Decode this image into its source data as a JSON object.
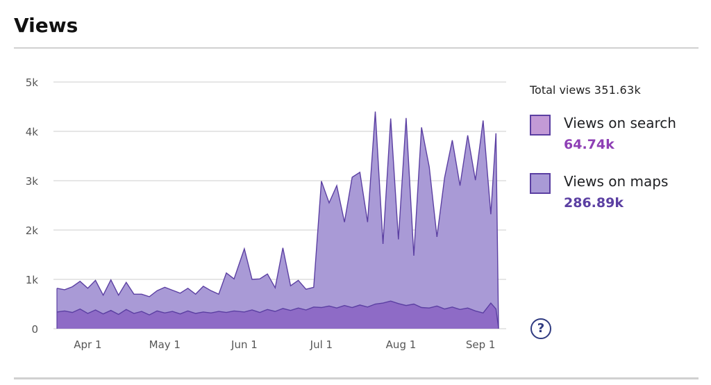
{
  "header": {
    "title": "Views"
  },
  "summary": {
    "total_label": "Total views",
    "total_value": "351.63k"
  },
  "legend": {
    "items": [
      {
        "label": "Views on search",
        "value": "64.74k",
        "swatch_color": "#c39ad6",
        "value_color": "#8e3fb5"
      },
      {
        "label": "Views on maps",
        "value": "286.89k",
        "swatch_color": "#a99ad6",
        "value_color": "#5b3fa2"
      }
    ]
  },
  "help": {
    "icon": "question-circle-icon",
    "glyph": "?"
  },
  "chart_data": {
    "type": "area",
    "stacked": true,
    "grid": true,
    "legend_placement": "right",
    "ylim": [
      0,
      5000
    ],
    "y_ticks": [
      0,
      1000,
      2000,
      3000,
      4000,
      5000
    ],
    "y_tick_labels": [
      "0",
      "1k",
      "2k",
      "3k",
      "4k",
      "5k"
    ],
    "x_range": [
      "2024-03-20",
      "2024-09-10"
    ],
    "x_ticks": [
      "2024-04-01",
      "2024-05-01",
      "2024-06-01",
      "2024-07-01",
      "2024-08-01",
      "2024-09-01"
    ],
    "x_tick_labels": [
      "Apr 1",
      "May 1",
      "Jun 1",
      "Jul 1",
      "Aug 1",
      "Sep 1"
    ],
    "colors": {
      "search_fill": "#8e6bc6",
      "maps_fill": "#a99ad6",
      "line": "#5b3fa2",
      "grid": "#cccccc"
    },
    "series": [
      {
        "name": "Views on search",
        "points": [
          [
            "2024-03-20",
            340
          ],
          [
            "2024-03-23",
            360
          ],
          [
            "2024-03-26",
            330
          ],
          [
            "2024-03-29",
            400
          ],
          [
            "2024-04-01",
            310
          ],
          [
            "2024-04-04",
            380
          ],
          [
            "2024-04-07",
            300
          ],
          [
            "2024-04-10",
            370
          ],
          [
            "2024-04-13",
            290
          ],
          [
            "2024-04-16",
            390
          ],
          [
            "2024-04-19",
            310
          ],
          [
            "2024-04-22",
            350
          ],
          [
            "2024-04-25",
            280
          ],
          [
            "2024-04-28",
            360
          ],
          [
            "2024-05-01",
            320
          ],
          [
            "2024-05-04",
            350
          ],
          [
            "2024-05-07",
            300
          ],
          [
            "2024-05-10",
            360
          ],
          [
            "2024-05-13",
            310
          ],
          [
            "2024-05-16",
            340
          ],
          [
            "2024-05-19",
            320
          ],
          [
            "2024-05-22",
            350
          ],
          [
            "2024-05-25",
            330
          ],
          [
            "2024-05-28",
            360
          ],
          [
            "2024-06-01",
            340
          ],
          [
            "2024-06-04",
            380
          ],
          [
            "2024-06-07",
            330
          ],
          [
            "2024-06-10",
            390
          ],
          [
            "2024-06-13",
            350
          ],
          [
            "2024-06-16",
            410
          ],
          [
            "2024-06-19",
            370
          ],
          [
            "2024-06-22",
            420
          ],
          [
            "2024-06-25",
            380
          ],
          [
            "2024-06-28",
            440
          ],
          [
            "2024-07-01",
            430
          ],
          [
            "2024-07-04",
            460
          ],
          [
            "2024-07-07",
            420
          ],
          [
            "2024-07-10",
            470
          ],
          [
            "2024-07-13",
            430
          ],
          [
            "2024-07-16",
            480
          ],
          [
            "2024-07-19",
            440
          ],
          [
            "2024-07-22",
            500
          ],
          [
            "2024-07-25",
            520
          ],
          [
            "2024-07-28",
            560
          ],
          [
            "2024-07-31",
            510
          ],
          [
            "2024-08-03",
            470
          ],
          [
            "2024-08-06",
            500
          ],
          [
            "2024-08-09",
            430
          ],
          [
            "2024-08-12",
            420
          ],
          [
            "2024-08-15",
            460
          ],
          [
            "2024-08-18",
            400
          ],
          [
            "2024-08-21",
            440
          ],
          [
            "2024-08-24",
            390
          ],
          [
            "2024-08-27",
            420
          ],
          [
            "2024-08-30",
            360
          ],
          [
            "2024-09-02",
            320
          ],
          [
            "2024-09-05",
            520
          ],
          [
            "2024-09-07",
            400
          ],
          [
            "2024-09-08",
            20
          ]
        ]
      },
      {
        "name": "Views on maps",
        "points": [
          [
            "2024-03-20",
            480
          ],
          [
            "2024-03-23",
            430
          ],
          [
            "2024-03-26",
            520
          ],
          [
            "2024-03-29",
            560
          ],
          [
            "2024-04-01",
            510
          ],
          [
            "2024-04-04",
            600
          ],
          [
            "2024-04-07",
            380
          ],
          [
            "2024-04-10",
            620
          ],
          [
            "2024-04-13",
            390
          ],
          [
            "2024-04-16",
            550
          ],
          [
            "2024-04-19",
            390
          ],
          [
            "2024-04-22",
            350
          ],
          [
            "2024-04-25",
            370
          ],
          [
            "2024-04-28",
            410
          ],
          [
            "2024-05-01",
            520
          ],
          [
            "2024-05-04",
            430
          ],
          [
            "2024-05-07",
            420
          ],
          [
            "2024-05-10",
            460
          ],
          [
            "2024-05-13",
            390
          ],
          [
            "2024-05-16",
            520
          ],
          [
            "2024-05-19",
            450
          ],
          [
            "2024-05-22",
            350
          ],
          [
            "2024-05-25",
            800
          ],
          [
            "2024-05-28",
            650
          ],
          [
            "2024-06-01",
            1280
          ],
          [
            "2024-06-04",
            620
          ],
          [
            "2024-06-07",
            680
          ],
          [
            "2024-06-10",
            720
          ],
          [
            "2024-06-13",
            480
          ],
          [
            "2024-06-16",
            1230
          ],
          [
            "2024-06-19",
            500
          ],
          [
            "2024-06-22",
            560
          ],
          [
            "2024-06-25",
            420
          ],
          [
            "2024-06-28",
            400
          ],
          [
            "2024-07-01",
            2560
          ],
          [
            "2024-07-04",
            2090
          ],
          [
            "2024-07-07",
            2480
          ],
          [
            "2024-07-10",
            1690
          ],
          [
            "2024-07-13",
            2640
          ],
          [
            "2024-07-16",
            2690
          ],
          [
            "2024-07-19",
            1720
          ],
          [
            "2024-07-22",
            3900
          ],
          [
            "2024-07-25",
            1200
          ],
          [
            "2024-07-28",
            3700
          ],
          [
            "2024-07-31",
            1300
          ],
          [
            "2024-08-03",
            3800
          ],
          [
            "2024-08-06",
            980
          ],
          [
            "2024-08-09",
            3650
          ],
          [
            "2024-08-12",
            2860
          ],
          [
            "2024-08-15",
            1400
          ],
          [
            "2024-08-18",
            2660
          ],
          [
            "2024-08-21",
            3380
          ],
          [
            "2024-08-24",
            2510
          ],
          [
            "2024-08-27",
            3500
          ],
          [
            "2024-08-30",
            2650
          ],
          [
            "2024-09-02",
            3900
          ],
          [
            "2024-09-05",
            1800
          ],
          [
            "2024-09-07",
            3560
          ],
          [
            "2024-09-08",
            20
          ]
        ]
      }
    ]
  }
}
